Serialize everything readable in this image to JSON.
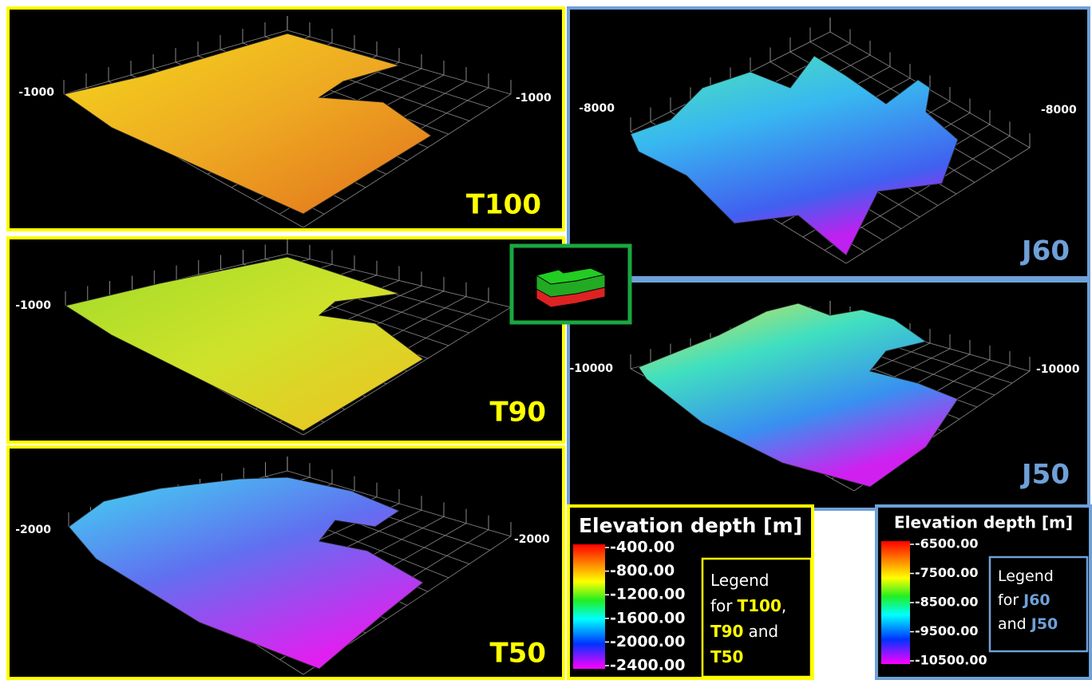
{
  "panels": [
    {
      "label": "T100",
      "axis_left": "-1000",
      "axis_right": "-1000"
    },
    {
      "label": "T90",
      "axis_left": "-1000"
    },
    {
      "label": "T50",
      "axis_left": "-2000",
      "axis_right": "-2000"
    },
    {
      "label": "J60",
      "axis_left": "-8000",
      "axis_right": "-8000"
    },
    {
      "label": "J50",
      "axis_left": "-10000",
      "axis_right": "-10000"
    }
  ],
  "legends": [
    {
      "title": "Elevation depth [m]",
      "ticks": [
        "-400.00",
        "-800.00",
        "-1200.00",
        "-1600.00",
        "-2000.00",
        "-2400.00"
      ],
      "note": [
        [
          {
            "t": "Legend"
          }
        ],
        [
          {
            "t": "for"
          },
          {
            "t": "T100",
            "hl": true
          },
          {
            "t": ","
          }
        ],
        [
          {
            "t": "T90",
            "hl": true
          },
          {
            "t": "and"
          }
        ],
        [
          {
            "t": "T50",
            "hl": true
          }
        ]
      ]
    },
    {
      "title": "Elevation depth [m]",
      "ticks": [
        "-6500.00",
        "-7500.00",
        "-8500.00",
        "-9500.00",
        "-10500.00"
      ],
      "note": [
        [
          {
            "t": "Legend"
          }
        ],
        [
          {
            "t": "for"
          },
          {
            "t": "J60",
            "hl": true
          }
        ],
        [
          {
            "t": "and"
          },
          {
            "t": "J50",
            "hl": true
          }
        ]
      ]
    }
  ]
}
